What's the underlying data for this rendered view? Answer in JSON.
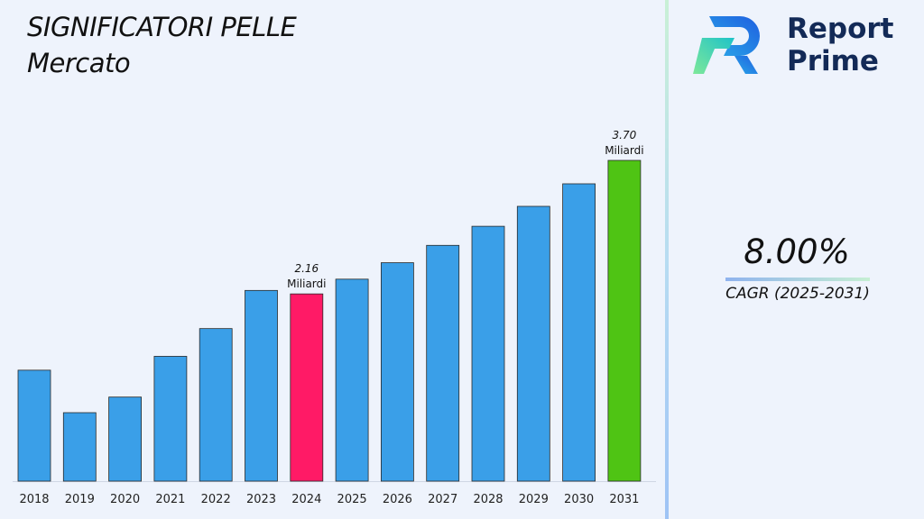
{
  "title": {
    "line1": "SIGNIFICATORI PELLE",
    "line2": "Mercato"
  },
  "brand": {
    "line1": "Report",
    "line2": "Prime"
  },
  "cagr": {
    "value": "8.00%",
    "label": "CAGR (2025-2031)"
  },
  "colors": {
    "bar": "#3a9fe8",
    "highlight_2024": "#ff1a66",
    "highlight_2031": "#4fc414"
  },
  "chart_data": {
    "type": "bar",
    "categories": [
      "2018",
      "2019",
      "2020",
      "2021",
      "2022",
      "2023",
      "2024",
      "2025",
      "2026",
      "2027",
      "2028",
      "2029",
      "2030",
      "2031"
    ],
    "values": [
      1.28,
      0.79,
      0.97,
      1.44,
      1.76,
      2.2,
      2.16,
      2.33,
      2.52,
      2.72,
      2.94,
      3.17,
      3.43,
      3.7
    ],
    "annotations": [
      {
        "index": 6,
        "value": "2.16",
        "unit": "Miliardi"
      },
      {
        "index": 13,
        "value": "3.70",
        "unit": "Miliardi"
      }
    ],
    "ylim": [
      0,
      3.7
    ]
  }
}
